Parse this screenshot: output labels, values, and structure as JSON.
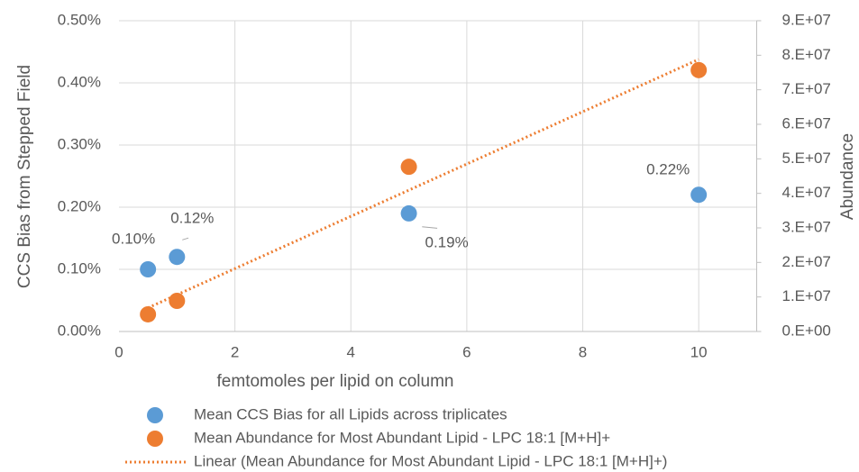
{
  "chart_data": {
    "type": "scatter",
    "x_label": "femtomoles per lipid on column",
    "y_label": "CCS Bias from Stepped Field",
    "y2_label": "Abundance",
    "xlim": [
      0,
      11
    ],
    "xticks": [
      0,
      2,
      4,
      6,
      8,
      10
    ],
    "ylim": [
      0,
      0.5
    ],
    "yticks": [
      {
        "value": 0,
        "label": "0.00%"
      },
      {
        "value": 0.1,
        "label": "0.10%"
      },
      {
        "value": 0.2,
        "label": "0.20%"
      },
      {
        "value": 0.3,
        "label": "0.30%"
      },
      {
        "value": 0.4,
        "label": "0.40%"
      },
      {
        "value": 0.5,
        "label": "0.50%"
      }
    ],
    "y2lim": [
      0,
      90000000
    ],
    "y2ticks": [
      {
        "value": 0,
        "label": "0.E+00"
      },
      {
        "value": 10000000,
        "label": "1.E+07"
      },
      {
        "value": 20000000,
        "label": "2.E+07"
      },
      {
        "value": 30000000,
        "label": "3.E+07"
      },
      {
        "value": 40000000,
        "label": "4.E+07"
      },
      {
        "value": 50000000,
        "label": "5.E+07"
      },
      {
        "value": 60000000,
        "label": "6.E+07"
      },
      {
        "value": 70000000,
        "label": "7.E+07"
      },
      {
        "value": 80000000,
        "label": "8.E+07"
      },
      {
        "value": 90000000,
        "label": "9.E+07"
      }
    ],
    "grid": true,
    "legend": "bottom",
    "series": [
      {
        "name": "Mean CCS Bias for all Lipids across triplicates",
        "color": "#5b9bd5",
        "x": [
          0.5,
          1,
          5,
          10
        ],
        "values": [
          0.1,
          0.12,
          0.19,
          0.22
        ],
        "value_labels": [
          "0.10%",
          "0.12%",
          "0.19%",
          "0.22%"
        ]
      },
      {
        "name": "Mean Abundance for Most Abundant Lipid - LPC 18:1 [M+H]+",
        "color": "#ed7d31",
        "axis": "y2",
        "x": [
          0.5,
          1,
          5,
          10
        ],
        "values": [
          4960000,
          8870000,
          47700000,
          75700000
        ]
      },
      {
        "name": "Linear (Mean Abundance for Most Abundant Lipid - LPC 18:1 [M+H]+)",
        "color": "#ed7d31",
        "axis": "y2",
        "style": "dotted",
        "x": [
          0.5,
          10
        ],
        "values": [
          6850000,
          78800000
        ]
      }
    ]
  }
}
